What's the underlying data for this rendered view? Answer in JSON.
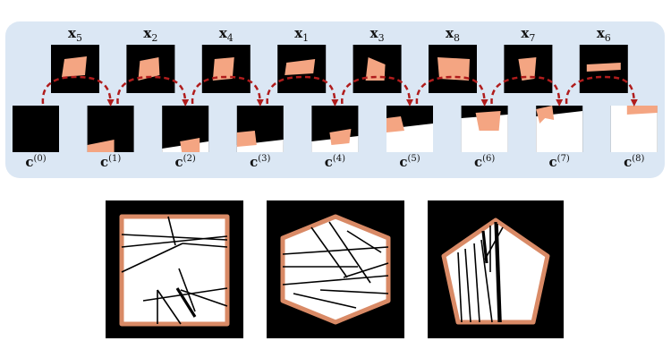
{
  "top_row": {
    "pieces": [
      {
        "label": "x",
        "sub": "5"
      },
      {
        "label": "x",
        "sub": "2"
      },
      {
        "label": "x",
        "sub": "4"
      },
      {
        "label": "x",
        "sub": "1"
      },
      {
        "label": "x",
        "sub": "3"
      },
      {
        "label": "x",
        "sub": "8"
      },
      {
        "label": "x",
        "sub": "7"
      },
      {
        "label": "x",
        "sub": "6"
      }
    ],
    "canvases": [
      {
        "label": "c",
        "sup": "(0)"
      },
      {
        "label": "c",
        "sup": "(1)"
      },
      {
        "label": "c",
        "sup": "(2)"
      },
      {
        "label": "c",
        "sup": "(3)"
      },
      {
        "label": "c",
        "sup": "(4)"
      },
      {
        "label": "c",
        "sup": "(5)"
      },
      {
        "label": "c",
        "sup": "(6)"
      },
      {
        "label": "c",
        "sup": "(7)"
      },
      {
        "label": "c",
        "sup": "(8)"
      }
    ]
  },
  "bottom_row": {
    "shapes": [
      "square",
      "hexagon",
      "pentagon"
    ]
  },
  "colors": {
    "panel": "#dbe7f4",
    "fragment": "#f4a582",
    "border": "#d98a66",
    "arrow": "#b01c1c",
    "background_tile": "#000000",
    "revealed": "#ffffff"
  }
}
